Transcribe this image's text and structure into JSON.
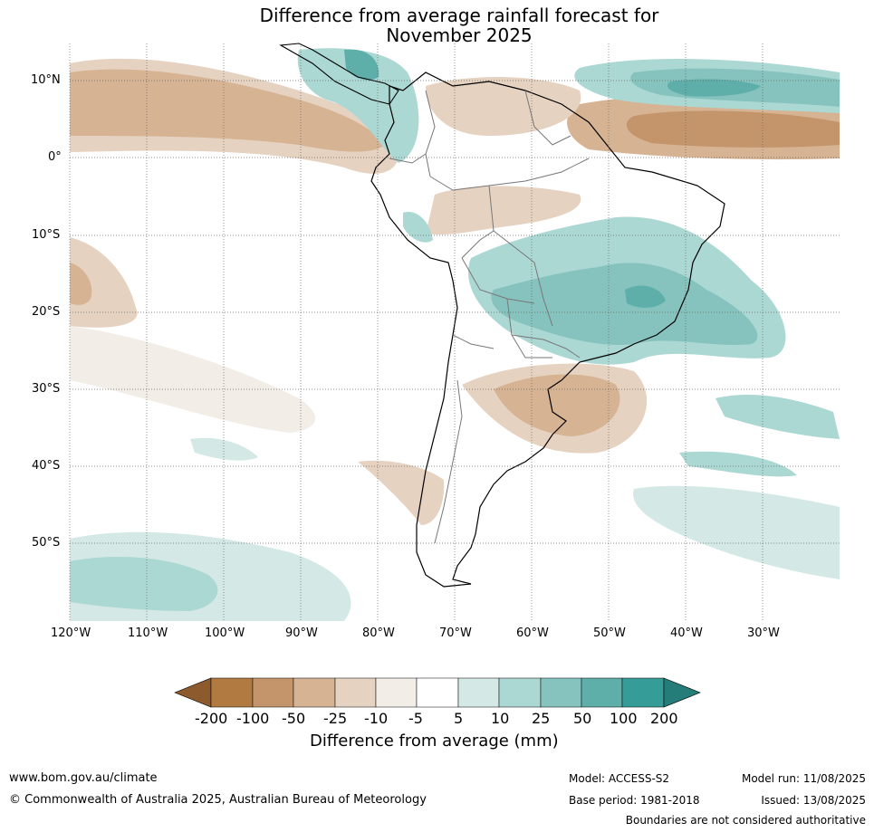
{
  "title": {
    "line1": "Difference from average rainfall forecast for",
    "line2": "November 2025"
  },
  "map": {
    "lat_labels": [
      "10°N",
      "0°",
      "10°S",
      "20°S",
      "30°S",
      "40°S",
      "50°S"
    ],
    "lon_labels": [
      "120°W",
      "110°W",
      "100°W",
      "90°W",
      "80°W",
      "70°W",
      "60°W",
      "50°W",
      "40°W",
      "30°W"
    ]
  },
  "legend": {
    "ticks": [
      "-200",
      "-100",
      "-50",
      "-25",
      "-10",
      "-5",
      "5",
      "10",
      "25",
      "50",
      "100",
      "200"
    ],
    "colors": [
      "#8c5a2c",
      "#b07a40",
      "#c4956a",
      "#d6b393",
      "#e6d2c0",
      "#f3ede8",
      "#ffffff",
      "#d4e9e6",
      "#acd8d4",
      "#86c3be",
      "#5eaeaa",
      "#359c98",
      "#257d79"
    ],
    "label": "Difference from average (mm)"
  },
  "footer": {
    "website": "www.bom.gov.au/climate",
    "copyright": "© Commonwealth of Australia 2025, Australian Bureau of Meteorology",
    "model": "Model: ACCESS-S2",
    "base_period": "Base period: 1981-2018",
    "model_run": "Model run: 11/08/2025",
    "issued": "Issued: 13/08/2025",
    "disclaimer": "Boundaries are not considered authoritative"
  }
}
